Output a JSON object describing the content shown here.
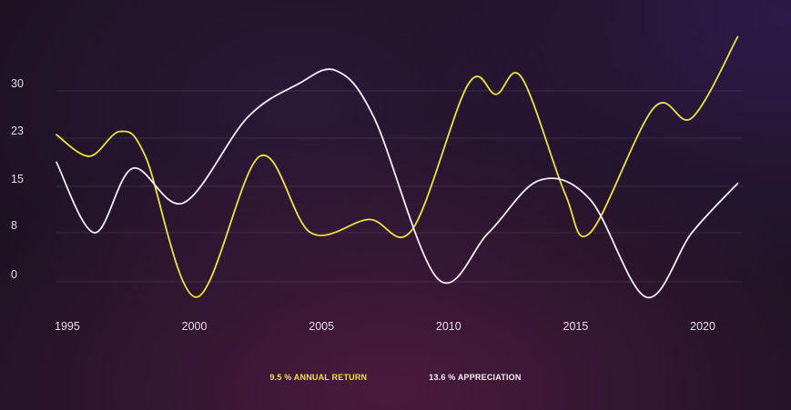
{
  "chart_data": {
    "type": "line",
    "y_ticks": [
      0,
      8,
      15,
      23,
      30
    ],
    "x_ticks": [
      1995,
      2000,
      2005,
      2010,
      2015,
      2020
    ],
    "xlim": [
      1995,
      2022
    ],
    "ylim": [
      -3,
      36
    ],
    "grid": true,
    "legend_placement": "bottom-center",
    "series": [
      {
        "name": "9.5 % ANNUAL RETURN",
        "color": "#ece336",
        "x": [
          1995,
          1996.3,
          1997.5,
          1998.5,
          2000.5,
          2003,
          2005,
          2007.3,
          2009,
          2011.2,
          2012.3,
          2013.3,
          2015,
          2016,
          2018.5,
          2020,
          2021.8
        ],
        "values": [
          23.5,
          20,
          24,
          20,
          -2.5,
          20,
          8,
          10,
          8.5,
          31,
          29.5,
          32,
          14,
          8,
          27.5,
          26,
          38
        ]
      },
      {
        "name": "13.6 % APPRECIATION",
        "color": "#f3eef5",
        "x": [
          1995,
          1996.5,
          1998,
          2000,
          2002.5,
          2004.5,
          2006,
          2007.5,
          2010,
          2012,
          2014,
          2016,
          2018.2,
          2020,
          2021.8
        ],
        "values": [
          19,
          8,
          18,
          12.5,
          26,
          31,
          33,
          26,
          0.5,
          8,
          16,
          13,
          -2.5,
          8,
          15.5
        ]
      }
    ]
  }
}
